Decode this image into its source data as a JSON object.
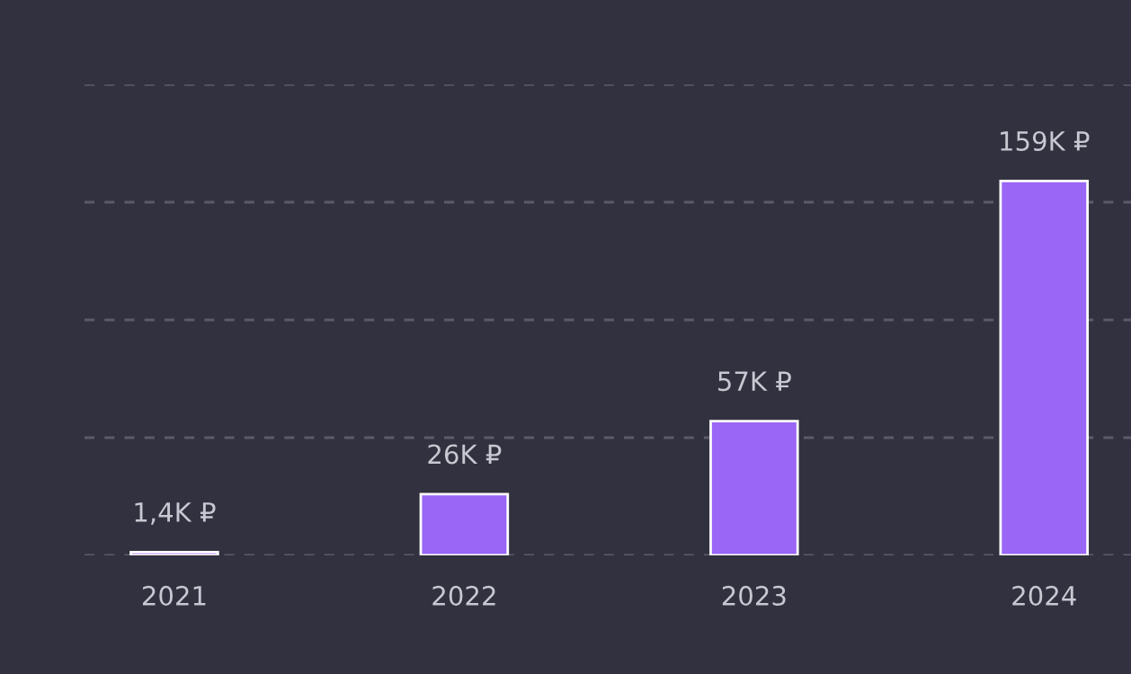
{
  "chart_data": {
    "type": "bar",
    "categories": [
      "2021",
      "2022",
      "2023",
      "2024"
    ],
    "values": [
      1.4,
      26,
      57,
      159
    ],
    "value_labels": [
      "1,4K ₽",
      "26K ₽",
      "57K ₽",
      "159K ₽"
    ],
    "color": "#9966f5",
    "ylim": [
      0,
      200
    ],
    "yticks": [
      {
        "value": 0,
        "label": null
      },
      {
        "value": 50,
        "label": null
      },
      {
        "value": 100,
        "label": null
      },
      {
        "value": 150,
        "label": null
      },
      {
        "value": 200,
        "label": null
      }
    ],
    "grid": "y",
    "tick_labels": "x",
    "legend": false
  }
}
